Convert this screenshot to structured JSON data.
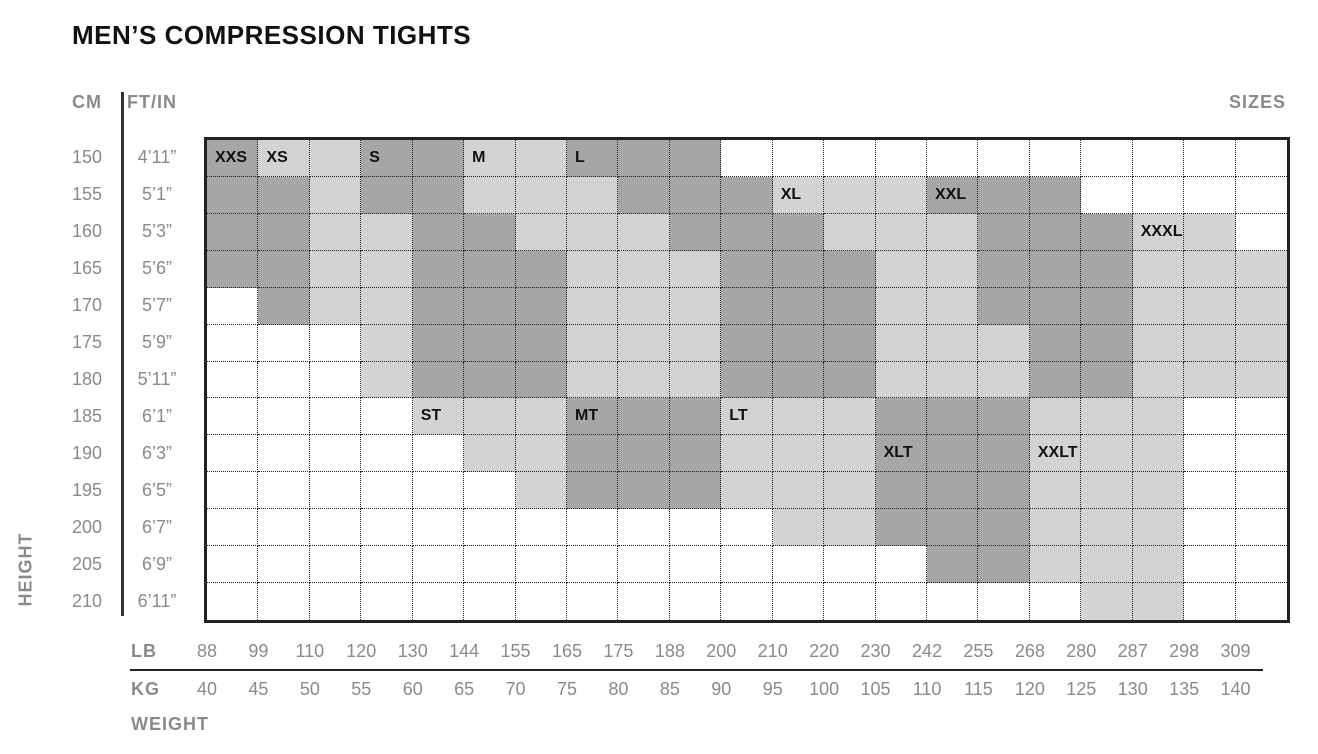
{
  "title": "MEN’S COMPRESSION TIGHTS",
  "headers": {
    "cm": "CM",
    "ftin": "FT/IN",
    "sizes": "SIZES",
    "height": "HEIGHT",
    "lb": "LB",
    "kg": "KG",
    "weight": "WEIGHT"
  },
  "chart_data": {
    "type": "heatmap",
    "title": "MEN’S COMPRESSION TIGHTS",
    "ylabel": "HEIGHT",
    "xlabel": "WEIGHT",
    "height_cm": [
      "150",
      "155",
      "160",
      "165",
      "170",
      "175",
      "180",
      "185",
      "190",
      "195",
      "200",
      "205",
      "210"
    ],
    "height_ftin": [
      "4’11”",
      "5’1”",
      "5’3”",
      "5’6”",
      "5’7”",
      "5’9”",
      "5’11”",
      "6’1”",
      "6’3”",
      "6’5”",
      "6’7”",
      "6’9”",
      "6’11”"
    ],
    "weight_lb": [
      "88",
      "99",
      "110",
      "120",
      "130",
      "144",
      "155",
      "165",
      "175",
      "188",
      "200",
      "210",
      "220",
      "230",
      "242",
      "255",
      "268",
      "280",
      "287",
      "298",
      "309"
    ],
    "weight_kg": [
      "40",
      "45",
      "50",
      "55",
      "60",
      "65",
      "70",
      "75",
      "80",
      "85",
      "90",
      "95",
      "100",
      "105",
      "110",
      "115",
      "120",
      "125",
      "130",
      "135",
      "140"
    ],
    "colors": {
      "D": "#a6a6a7",
      "L": "#d3d3d3",
      "W": "#ffffff"
    },
    "grid": [
      "DLLDDLLDDDWWWWWWWWWWW",
      "DDLDDLLLDDDLLLDDDWWWW",
      "DDLLDDLLLDDDLLLDDDLLW",
      "DDLLDDDLLLDDDLLDDDLLL",
      "WDLLDDDLLLDDDLLDDDLLL",
      "WWWLDDDLLLDDDLLLDDLLL",
      "WWWLDDDLLLDDDLLLDDLLL",
      "WWWWLLLDDDLLLDDDLLLWW",
      "WWWWWLLDDDLLLDDDLLLWW",
      "WWWWWWLDDDLLLDDDLLLWW",
      "WWWWWWWWWWWLLDDDLLLWW",
      "WWWWWWWWWWWWWWDDLLLWW",
      "WWWWWWWWWWWWWWWWWLLWW"
    ],
    "size_labels": [
      {
        "text": "XXS",
        "row": 0,
        "col": 0
      },
      {
        "text": "XS",
        "row": 0,
        "col": 1
      },
      {
        "text": "S",
        "row": 0,
        "col": 3
      },
      {
        "text": "M",
        "row": 0,
        "col": 5
      },
      {
        "text": "L",
        "row": 0,
        "col": 7
      },
      {
        "text": "XL",
        "row": 1,
        "col": 11
      },
      {
        "text": "XXL",
        "row": 1,
        "col": 14
      },
      {
        "text": "XXXL",
        "row": 2,
        "col": 18
      },
      {
        "text": "ST",
        "row": 7,
        "col": 4
      },
      {
        "text": "MT",
        "row": 7,
        "col": 7
      },
      {
        "text": "LT",
        "row": 7,
        "col": 10
      },
      {
        "text": "XLT",
        "row": 8,
        "col": 13
      },
      {
        "text": "XXLT",
        "row": 8,
        "col": 16
      }
    ]
  }
}
